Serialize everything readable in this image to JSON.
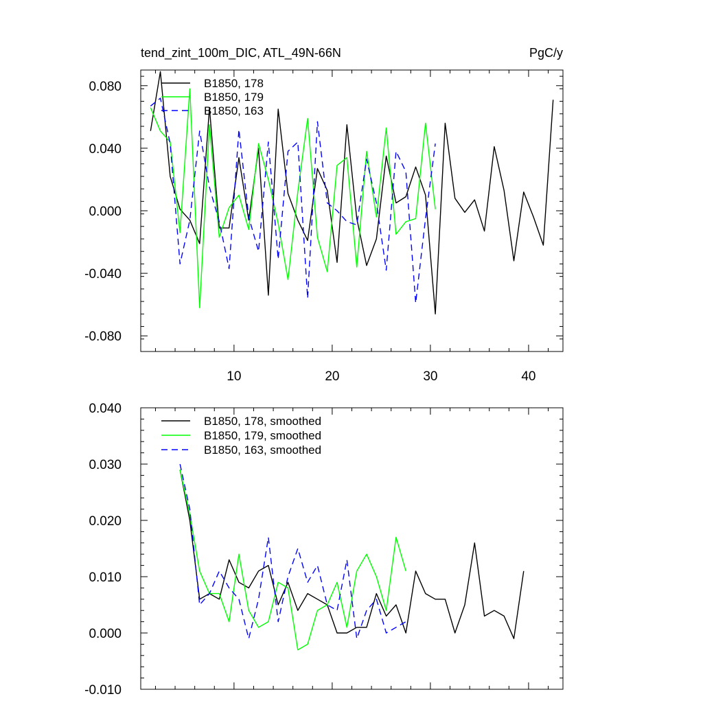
{
  "chart_data": [
    {
      "type": "line",
      "title": "tend_zint_100m_DIC, ATL_49N-66N",
      "units": "PgC/y",
      "xlabel": "",
      "ylabel": "",
      "xlim": [
        0.5,
        43.5
      ],
      "ylim": [
        -0.09,
        0.09
      ],
      "yticks": [
        -0.08,
        -0.04,
        0.0,
        0.04,
        0.08
      ],
      "ytick_labels": [
        "-0.080",
        "-0.040",
        "0.000",
        "0.040",
        "0.080"
      ],
      "xticks": [
        10,
        20,
        30,
        40
      ],
      "xtick_labels": [
        "10",
        "20",
        "30",
        "40"
      ],
      "legend": "top-left",
      "series": [
        {
          "name": "B1850, 178",
          "color": "#000000",
          "dash": "solid",
          "x": [
            1.5,
            2.5,
            3.5,
            4.5,
            5.5,
            6.5,
            7.5,
            8.5,
            9.5,
            10.5,
            11.5,
            12.5,
            13.5,
            14.5,
            15.5,
            16.5,
            17.5,
            18.5,
            19.5,
            20.5,
            21.5,
            22.5,
            23.5,
            24.5,
            25.5,
            26.5,
            27.5,
            28.5,
            29.5,
            30.5,
            31.5,
            32.5,
            33.5,
            34.5,
            35.5,
            36.5,
            37.5,
            38.5,
            39.5,
            40.5,
            41.5,
            42.5
          ],
          "y": [
            0.051,
            0.089,
            0.022,
            0.001,
            -0.006,
            -0.021,
            0.066,
            -0.011,
            -0.011,
            0.034,
            -0.006,
            0.04,
            -0.054,
            0.065,
            0.011,
            -0.006,
            -0.019,
            0.027,
            0.013,
            -0.033,
            0.055,
            -0.005,
            -0.035,
            -0.018,
            0.035,
            0.005,
            0.009,
            0.028,
            0.01,
            -0.066,
            0.056,
            0.008,
            -0.001,
            0.007,
            -0.013,
            0.041,
            0.013,
            -0.032,
            0.012,
            -0.004,
            -0.022,
            0.071
          ]
        },
        {
          "name": "B1850, 179",
          "color": "#00ff00",
          "dash": "solid",
          "x": [
            1.5,
            2.5,
            3.5,
            4.5,
            5.5,
            6.5,
            7.5,
            8.5,
            9.5,
            10.5,
            11.5,
            12.5,
            13.5,
            14.5,
            15.5,
            16.5,
            17.5,
            18.5,
            19.5,
            20.5,
            21.5,
            22.5,
            23.5,
            24.5,
            25.5,
            26.5,
            27.5,
            28.5,
            29.5,
            30.5
          ],
          "y": [
            0.066,
            0.051,
            0.044,
            -0.014,
            0.078,
            -0.062,
            0.055,
            -0.017,
            0.002,
            0.01,
            -0.012,
            0.043,
            0.02,
            -0.008,
            -0.044,
            0.012,
            0.059,
            -0.017,
            -0.039,
            0.029,
            0.034,
            -0.036,
            0.038,
            -0.004,
            0.053,
            -0.015,
            -0.007,
            -0.005,
            0.056,
            0.001
          ]
        },
        {
          "name": "B1850, 163",
          "color": "#0000ff",
          "dash": "dashed",
          "x": [
            1.5,
            2.5,
            3.5,
            4.5,
            5.5,
            6.5,
            7.5,
            8.5,
            9.5,
            10.5,
            11.5,
            12.5,
            13.5,
            14.5,
            15.5,
            16.5,
            17.5,
            18.5,
            19.5,
            20.5,
            21.5,
            22.5,
            23.5,
            24.5,
            25.5,
            26.5,
            27.5,
            28.5,
            29.5,
            30.5
          ],
          "y": [
            0.067,
            0.072,
            0.043,
            -0.034,
            -0.006,
            0.051,
            0.015,
            -0.007,
            -0.037,
            0.052,
            -0.004,
            -0.026,
            0.044,
            -0.031,
            0.038,
            0.044,
            -0.056,
            0.057,
            0.005,
            0.0,
            -0.007,
            -0.009,
            0.033,
            0.005,
            -0.038,
            0.038,
            0.025,
            -0.059,
            -0.005,
            0.043
          ]
        }
      ]
    },
    {
      "type": "line",
      "title": "",
      "xlabel": "",
      "ylabel": "",
      "xlim": [
        0.5,
        43.5
      ],
      "ylim": [
        -0.01,
        0.04
      ],
      "yticks": [
        -0.01,
        0.0,
        0.01,
        0.02,
        0.03,
        0.04
      ],
      "ytick_labels": [
        "-0.010",
        "0.000",
        "0.010",
        "0.020",
        "0.030",
        "0.040"
      ],
      "xticks": [
        10,
        20,
        30,
        40
      ],
      "xtick_labels": [],
      "legend": "top-left",
      "series": [
        {
          "name": "B1850, 178, smoothed",
          "color": "#000000",
          "dash": "solid",
          "x": [
            4.5,
            5.5,
            6.5,
            7.5,
            8.5,
            9.5,
            10.5,
            11.5,
            12.5,
            13.5,
            14.5,
            15.5,
            16.5,
            17.5,
            18.5,
            19.5,
            20.5,
            21.5,
            22.5,
            23.5,
            24.5,
            25.5,
            26.5,
            27.5,
            28.5,
            29.5,
            30.5,
            31.5,
            32.5,
            33.5,
            34.5,
            35.5,
            36.5,
            37.5,
            38.5,
            39.5
          ],
          "y": [
            0.029,
            0.02,
            0.006,
            0.007,
            0.006,
            0.013,
            0.009,
            0.008,
            0.011,
            0.012,
            0.005,
            0.009,
            0.004,
            0.007,
            0.006,
            0.005,
            0.0,
            0.0,
            0.001,
            0.001,
            0.007,
            0.003,
            0.005,
            0.0,
            0.011,
            0.007,
            0.006,
            0.006,
            0.0,
            0.005,
            0.016,
            0.003,
            0.004,
            0.003,
            -0.001,
            0.011
          ]
        },
        {
          "name": "B1850, 179, smoothed",
          "color": "#00ff00",
          "dash": "solid",
          "x": [
            4.5,
            5.5,
            6.5,
            7.5,
            8.5,
            9.5,
            10.5,
            11.5,
            12.5,
            13.5,
            14.5,
            15.5,
            16.5,
            17.5,
            18.5,
            19.5,
            20.5,
            21.5,
            22.5,
            23.5,
            24.5,
            25.5,
            26.5,
            27.5
          ],
          "y": [
            0.029,
            0.021,
            0.011,
            0.007,
            0.007,
            0.002,
            0.014,
            0.004,
            0.001,
            0.002,
            0.009,
            0.008,
            -0.003,
            -0.002,
            0.004,
            0.005,
            0.009,
            0.001,
            0.011,
            0.014,
            0.01,
            0.004,
            0.017,
            0.011
          ]
        },
        {
          "name": "B1850, 163, smoothed",
          "color": "#0000ff",
          "dash": "dashed",
          "x": [
            4.5,
            5.5,
            6.5,
            7.5,
            8.5,
            9.5,
            10.5,
            11.5,
            12.5,
            13.5,
            14.5,
            15.5,
            16.5,
            17.5,
            18.5,
            19.5,
            20.5,
            21.5,
            22.5,
            23.5,
            24.5,
            25.5,
            26.5,
            27.5
          ],
          "y": [
            0.03,
            0.022,
            0.005,
            0.007,
            0.011,
            0.008,
            0.006,
            -0.001,
            0.006,
            0.017,
            0.002,
            0.01,
            0.015,
            0.009,
            0.012,
            0.005,
            0.004,
            0.013,
            -0.001,
            0.004,
            0.006,
            0.0,
            0.001,
            0.002
          ]
        }
      ]
    }
  ]
}
